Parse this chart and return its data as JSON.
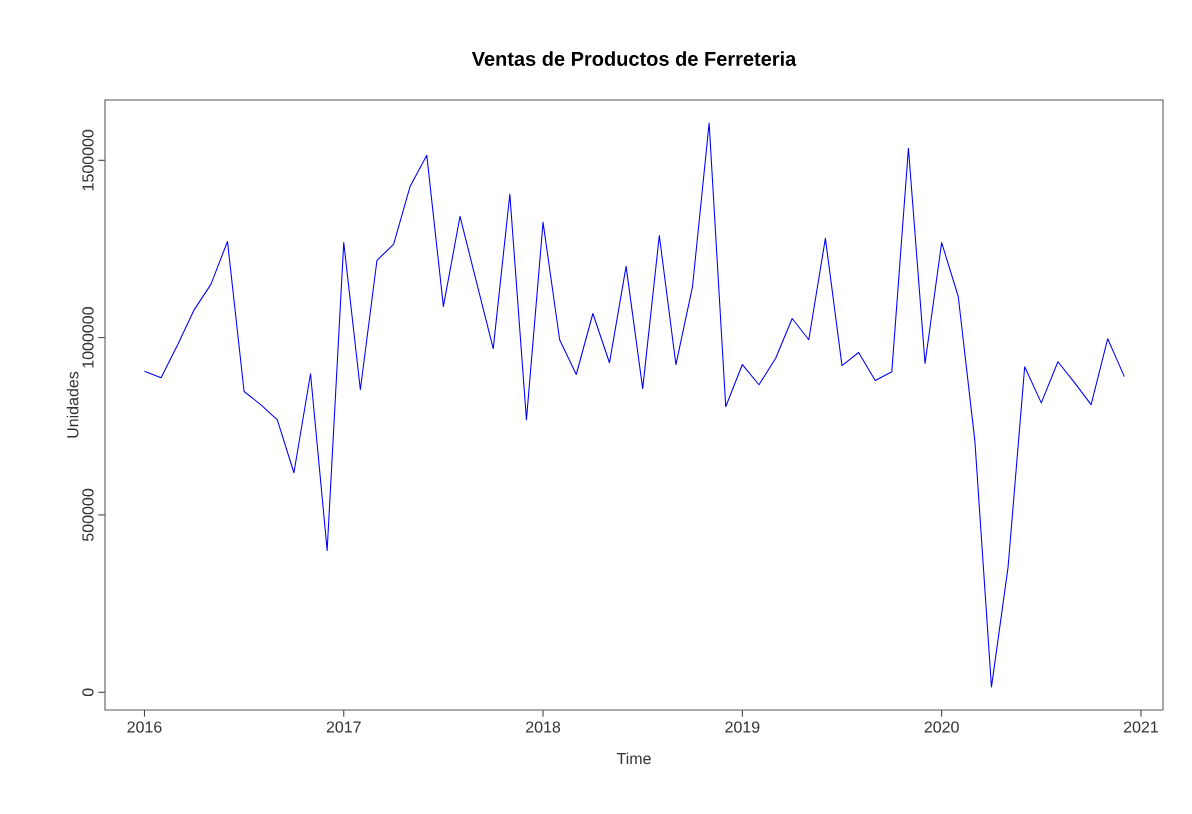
{
  "chart_data": {
    "type": "line",
    "title": "Ventas de Productos de Ferreteria",
    "xlabel": "Time",
    "ylabel": "Unidades",
    "x": [
      "2016-01",
      "2016-02",
      "2016-03",
      "2016-04",
      "2016-05",
      "2016-06",
      "2016-07",
      "2016-08",
      "2016-09",
      "2016-10",
      "2016-11",
      "2016-12",
      "2017-01",
      "2017-02",
      "2017-03",
      "2017-04",
      "2017-05",
      "2017-06",
      "2017-07",
      "2017-08",
      "2017-09",
      "2017-10",
      "2017-11",
      "2017-12",
      "2018-01",
      "2018-02",
      "2018-03",
      "2018-04",
      "2018-05",
      "2018-06",
      "2018-07",
      "2018-08",
      "2018-09",
      "2018-10",
      "2018-11",
      "2018-12",
      "2019-01",
      "2019-02",
      "2019-03",
      "2019-04",
      "2019-05",
      "2019-06",
      "2019-07",
      "2019-08",
      "2019-09",
      "2019-10",
      "2019-11",
      "2019-12",
      "2020-01",
      "2020-02",
      "2020-03",
      "2020-04",
      "2020-05",
      "2020-06",
      "2020-07",
      "2020-08",
      "2020-09",
      "2020-10",
      "2020-11",
      "2020-12"
    ],
    "series": [
      {
        "color": "#0000ff",
        "values": [
          905000,
          887000,
          980000,
          1079000,
          1150000,
          1271000,
          848000,
          811000,
          768000,
          619000,
          898000,
          400000,
          1268000,
          853000,
          1218000,
          1263000,
          1427000,
          1514000,
          1088000,
          1342000,
          1155000,
          969000,
          1404000,
          768000,
          1325000,
          994000,
          896000,
          1068000,
          929000,
          1201000,
          856000,
          1288000,
          924000,
          1144000,
          1605000,
          805000,
          924000,
          867000,
          941000,
          1054000,
          994000,
          1280000,
          921000,
          958000,
          879000,
          904000,
          1534000,
          927000,
          1268000,
          1116000,
          709000,
          15000,
          353000,
          918000,
          816000,
          932000,
          873000,
          811000,
          997000,
          890000
        ]
      }
    ],
    "xlim": [
      "2015-10-20",
      "2021-02-11"
    ],
    "xticks": [
      "2016",
      "2017",
      "2018",
      "2019",
      "2020",
      "2021"
    ],
    "ylim": [
      -50000,
      1670000
    ],
    "yticks": [
      0,
      500000,
      1000000,
      1500000
    ],
    "grid": false,
    "marker": "none",
    "line_style": "solid"
  }
}
